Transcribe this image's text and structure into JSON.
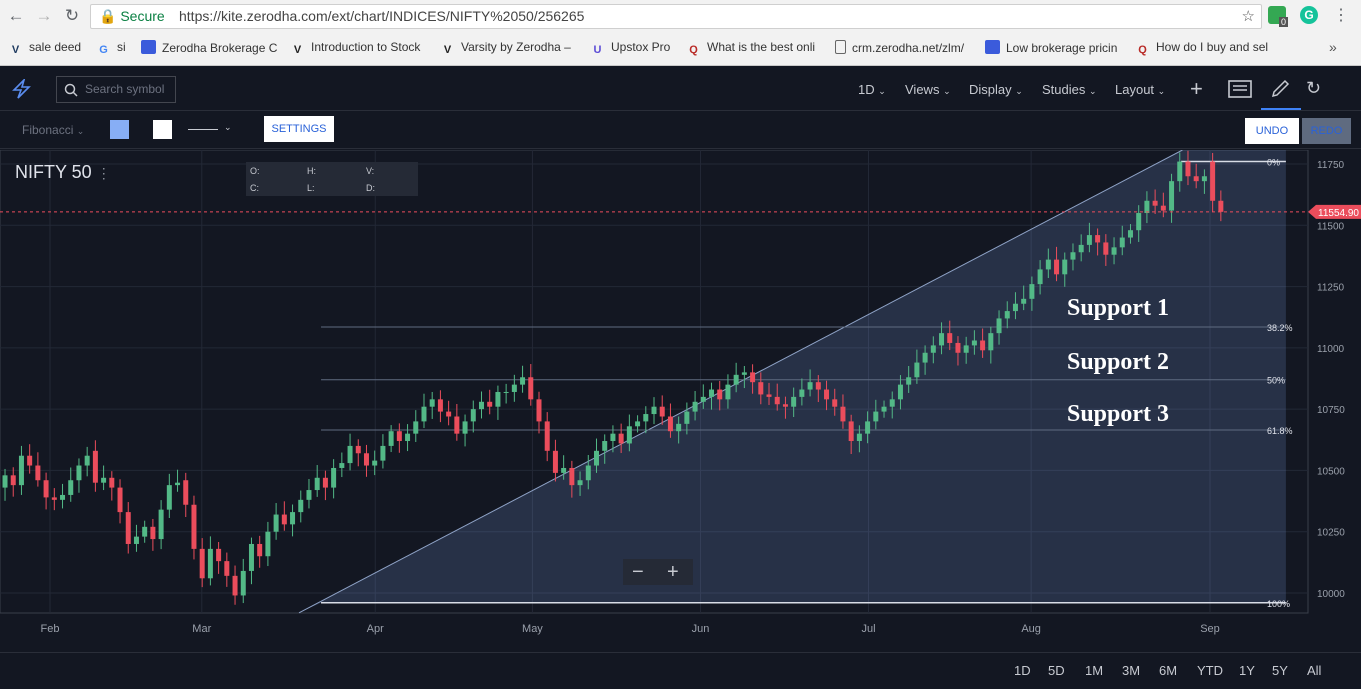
{
  "browser": {
    "secure": "Secure",
    "url": "https://kite.zerodha.com/ext/chart/INDICES/NIFTY%2050/256265",
    "ext_badge": "0"
  },
  "bookmarks": [
    {
      "label": "sale deed",
      "icon": "V",
      "color": "#1e3a5f"
    },
    {
      "label": "si",
      "icon": "G",
      "color": "#4285f4"
    },
    {
      "label": "Zerodha Brokerage C",
      "icon": "bookmark",
      "color": "#3b5bdb"
    },
    {
      "label": "Introduction to Stock",
      "icon": "V",
      "color": "#222"
    },
    {
      "label": "Varsity by Zerodha –",
      "icon": "V",
      "color": "#222"
    },
    {
      "label": "Upstox Pro",
      "icon": "U",
      "color": "#5b4bd6"
    },
    {
      "label": "What is the best onli",
      "icon": "Q",
      "color": "#b92b27"
    },
    {
      "label": "crm.zerodha.net/zlm/",
      "icon": "doc",
      "color": "#666"
    },
    {
      "label": "Low brokerage pricin",
      "icon": "bookmark",
      "color": "#3b5bdb"
    },
    {
      "label": "How do I buy and sel",
      "icon": "Q",
      "color": "#b92b27"
    }
  ],
  "topbar": {
    "search_placeholder": "Search symbol",
    "menus": [
      "1D",
      "Views",
      "Display",
      "Studies",
      "Layout"
    ]
  },
  "toolbar": {
    "drawing_tool": "Fibonacci",
    "settings": "SETTINGS",
    "undo": "UNDO",
    "redo": "REDO",
    "fill_color": "#87aef5",
    "line_color": "#ffffff"
  },
  "chart_data": {
    "type": "candlestick",
    "symbol": "NIFTY 50",
    "ohlc_labels": {
      "o": "O:",
      "h": "H:",
      "v": "V:",
      "c": "C:",
      "l": "L:",
      "d": "D:"
    },
    "last_price": "11554.90",
    "ylim": [
      9950,
      11830
    ],
    "yticks": [
      10000,
      10250,
      10500,
      10750,
      11000,
      11250,
      11500,
      11750
    ],
    "xticks": [
      {
        "label": "Feb",
        "t": "2018-02-01"
      },
      {
        "label": "Mar",
        "t": "2018-03-01"
      },
      {
        "label": "Apr",
        "t": "2018-04-02"
      },
      {
        "label": "May",
        "t": "2018-05-01"
      },
      {
        "label": "Jun",
        "t": "2018-06-01"
      },
      {
        "label": "Jul",
        "t": "2018-07-02"
      },
      {
        "label": "Aug",
        "t": "2018-08-01"
      },
      {
        "label": "Sep",
        "t": "2018-09-03"
      }
    ],
    "fib_levels": [
      {
        "label": "0%",
        "price": 11760
      },
      {
        "label": "38.2%",
        "price": 11085
      },
      {
        "label": "50%",
        "price": 10870
      },
      {
        "label": "61.8%",
        "price": 10665
      },
      {
        "label": "100%",
        "price": 9960
      }
    ],
    "annotations": [
      "Support 1",
      "Support 2",
      "Support 3"
    ],
    "candles_close": [
      11050,
      11090,
      11130,
      11100,
      11040,
      10830,
      10670,
      10570,
      10480,
      10300,
      10460,
      10520,
      10430,
      10480,
      10440,
      10560,
      10520,
      10460,
      10390,
      10380,
      10400,
      10460,
      10520,
      10560,
      10450,
      10470,
      10430,
      10330,
      10200,
      10230,
      10270,
      10220,
      10340,
      10440,
      10450,
      10360,
      10180,
      10060,
      10180,
      10130,
      10070,
      9990,
      10090,
      10200,
      10150,
      10250,
      10320,
      10280,
      10330,
      10380,
      10420,
      10470,
      10430,
      10510,
      10530,
      10600,
      10570,
      10520,
      10540,
      10600,
      10660,
      10620,
      10650,
      10700,
      10760,
      10790,
      10740,
      10720,
      10650,
      10700,
      10750,
      10780,
      10760,
      10820,
      10820,
      10850,
      10880,
      10790,
      10700,
      10580,
      10490,
      10510,
      10440,
      10460,
      10520,
      10580,
      10620,
      10650,
      10610,
      10680,
      10700,
      10730,
      10760,
      10720,
      10660,
      10690,
      10740,
      10780,
      10800,
      10830,
      10790,
      10850,
      10890,
      10900,
      10860,
      10810,
      10800,
      10770,
      10760,
      10800,
      10830,
      10860,
      10830,
      10790,
      10760,
      10700,
      10620,
      10650,
      10700,
      10740,
      10760,
      10790,
      10850,
      10880,
      10940,
      10980,
      11010,
      11060,
      11020,
      10980,
      11010,
      11030,
      10990,
      11060,
      11120,
      11150,
      11180,
      11200,
      11260,
      11320,
      11360,
      11300,
      11360,
      11390,
      11420,
      11460,
      11430,
      11380,
      11410,
      11450,
      11480,
      11550,
      11600,
      11580,
      11560,
      11680,
      11760,
      11700,
      11680,
      11700,
      11600,
      11554.9
    ],
    "candles_open": [
      11010,
      11050,
      11090,
      11130,
      11100,
      11000,
      10830,
      10670,
      10570,
      10480,
      10300,
      10460,
      10520,
      10430,
      10480,
      10440,
      10560,
      10520,
      10460,
      10390,
      10380,
      10400,
      10460,
      10520,
      10580,
      10450,
      10470,
      10430,
      10330,
      10200,
      10230,
      10270,
      10220,
      10340,
      10440,
      10460,
      10360,
      10180,
      10060,
      10180,
      10130,
      10070,
      9990,
      10090,
      10200,
      10150,
      10250,
      10320,
      10280,
      10330,
      10380,
      10420,
      10470,
      10430,
      10510,
      10530,
      10600,
      10570,
      10520,
      10540,
      10600,
      10660,
      10620,
      10650,
      10700,
      10760,
      10790,
      10740,
      10720,
      10650,
      10700,
      10750,
      10780,
      10760,
      10820,
      10820,
      10850,
      10880,
      10790,
      10700,
      10580,
      10490,
      10510,
      10440,
      10460,
      10520,
      10580,
      10620,
      10650,
      10610,
      10680,
      10700,
      10730,
      10760,
      10720,
      10660,
      10690,
      10740,
      10780,
      10800,
      10830,
      10790,
      10850,
      10890,
      10900,
      10860,
      10810,
      10800,
      10770,
      10760,
      10800,
      10830,
      10860,
      10830,
      10790,
      10760,
      10700,
      10620,
      10650,
      10700,
      10740,
      10760,
      10790,
      10850,
      10880,
      10940,
      10980,
      11010,
      11060,
      11020,
      10980,
      11010,
      11030,
      10990,
      11060,
      11120,
      11150,
      11180,
      11200,
      11260,
      11320,
      11360,
      11300,
      11360,
      11390,
      11420,
      11460,
      11430,
      11380,
      11410,
      11450,
      11480,
      11550,
      11600,
      11580,
      11560,
      11680,
      11760,
      11700,
      11680,
      11760,
      11600
    ]
  },
  "footer": {
    "ranges": [
      "1D",
      "5D",
      "1M",
      "3M",
      "6M",
      "YTD",
      "1Y",
      "5Y",
      "All"
    ]
  },
  "colors": {
    "up": "#53b987",
    "down": "#eb4d5c",
    "fill": "#87aef5"
  }
}
